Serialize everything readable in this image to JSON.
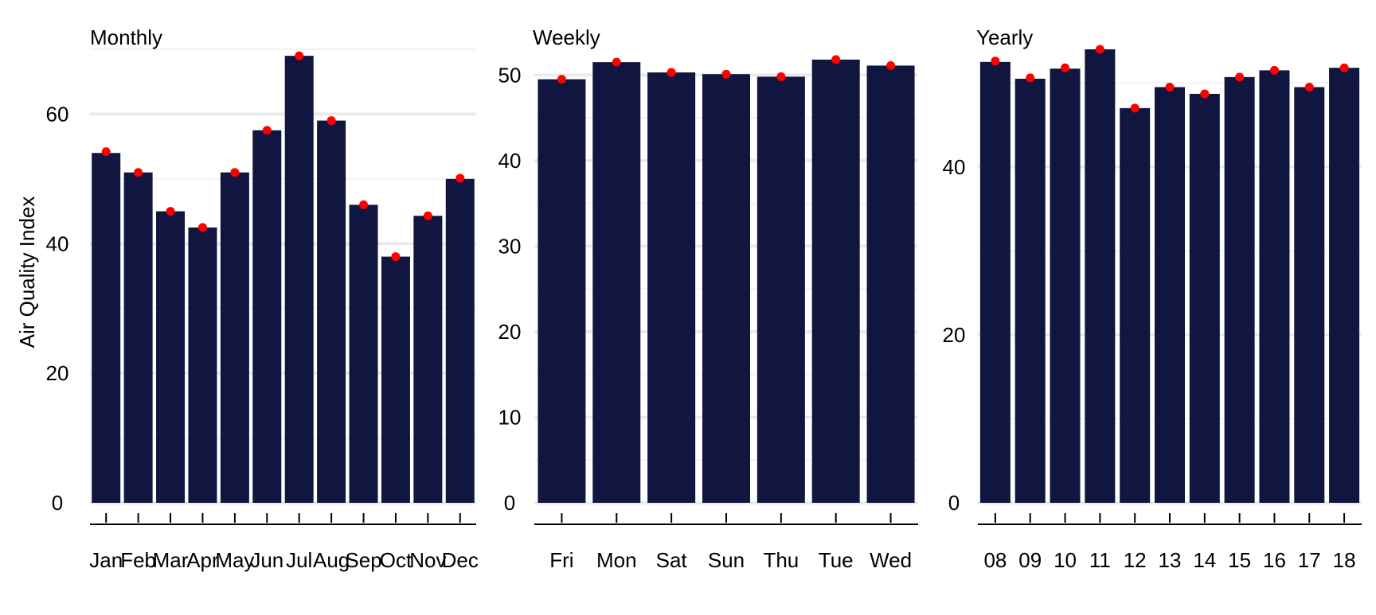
{
  "chart_data": [
    {
      "type": "bar",
      "title": "Monthly",
      "ylabel": "Air Quality Index",
      "xlabel": "",
      "ylim": [
        0,
        70
      ],
      "yticks": [
        0,
        20,
        40,
        60
      ],
      "categories": [
        "Jan",
        "Feb",
        "Mar",
        "Apr",
        "May",
        "Jun",
        "Jul",
        "Aug",
        "Sep",
        "Oct",
        "Nov",
        "Dec"
      ],
      "values": [
        54,
        51,
        45,
        42.5,
        51,
        57.5,
        69,
        59,
        46,
        38,
        44.3,
        50
      ],
      "points": [
        54.2,
        51,
        45,
        42.5,
        51,
        57.5,
        69,
        59,
        46,
        38,
        44.3,
        50.1
      ],
      "grid": true,
      "bar_color": "#10163f",
      "point_color": "#ff0000",
      "y_axis_side": "left"
    },
    {
      "type": "bar",
      "title": "Weekly",
      "ylabel": "",
      "xlabel": "",
      "ylim": [
        0,
        53
      ],
      "yticks": [
        0,
        10,
        20,
        30,
        40,
        50
      ],
      "categories": [
        "Fri",
        "Mon",
        "Sat",
        "Sun",
        "Thu",
        "Tue",
        "Wed"
      ],
      "values": [
        49.5,
        51.5,
        50.3,
        50.1,
        49.8,
        51.8,
        51.1
      ],
      "points": [
        49.5,
        51.5,
        50.3,
        50.1,
        49.8,
        51.8,
        51.1
      ],
      "grid": true,
      "bar_color": "#10163f",
      "point_color": "#ff0000",
      "y_axis_side": "left"
    },
    {
      "type": "bar",
      "title": "Yearly",
      "ylabel": "",
      "xlabel": "",
      "ylim": [
        0,
        54
      ],
      "yticks": [
        0,
        20,
        40
      ],
      "categories": [
        "08",
        "09",
        "10",
        "11",
        "12",
        "13",
        "14",
        "15",
        "16",
        "17",
        "18"
      ],
      "values": [
        52.5,
        50.5,
        51.7,
        54,
        47,
        49.5,
        48.7,
        50.7,
        51.5,
        49.5,
        51.8
      ],
      "points": [
        52.6,
        50.6,
        51.8,
        54,
        47,
        49.5,
        48.7,
        50.7,
        51.5,
        49.5,
        51.8
      ],
      "grid": true,
      "bar_color": "#10163f",
      "point_color": "#ff0000",
      "y_axis_side": "left"
    }
  ]
}
